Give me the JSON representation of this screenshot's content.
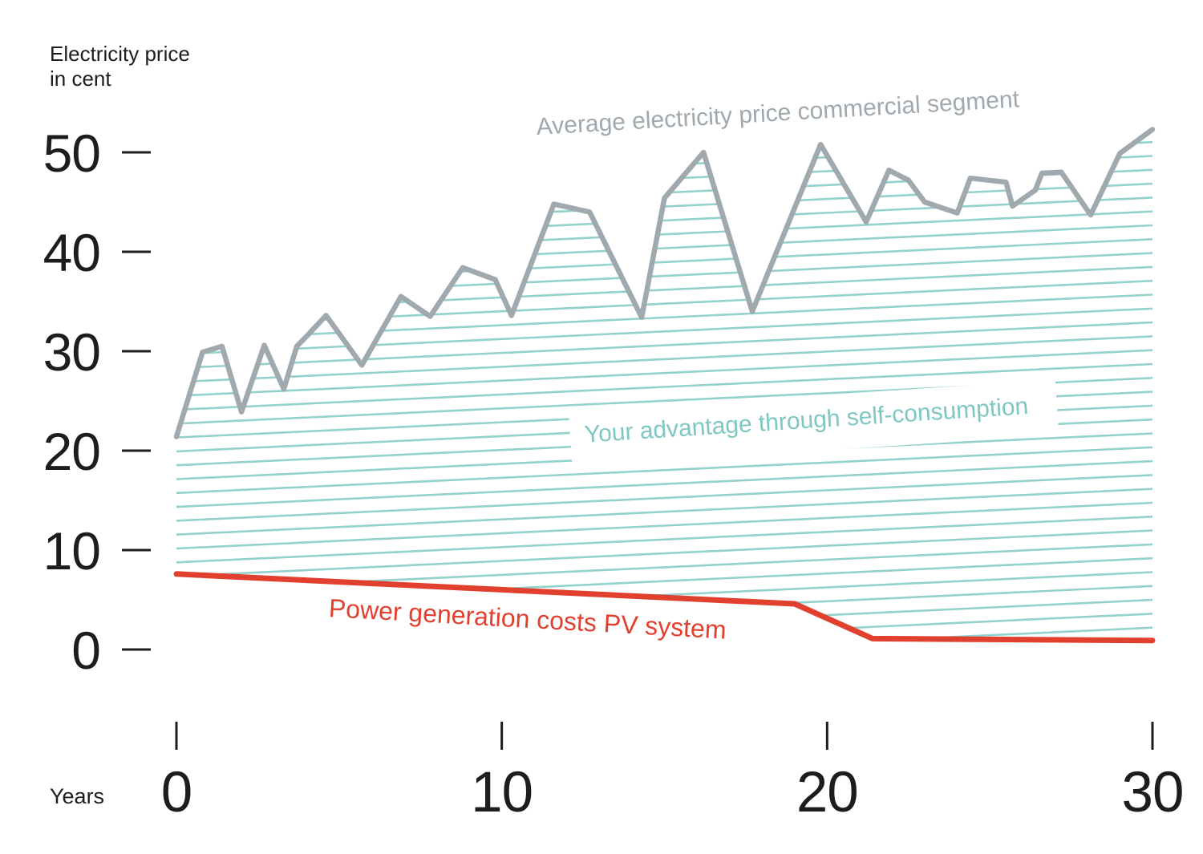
{
  "y_axis": {
    "title_line1": "Electricity price",
    "title_line2": "in cent",
    "ticks": [
      50,
      40,
      30,
      20,
      10,
      0
    ]
  },
  "x_axis": {
    "title": "Years",
    "ticks": [
      0,
      10,
      20,
      30
    ]
  },
  "colors": {
    "text": "#1d1d1b",
    "average_price_line": "#9fa9ae",
    "pv_cost_line": "#e2402e",
    "advantage_hatch": "#93d1cd",
    "advantage_label": "#7ec7c3",
    "background": "#ffffff"
  },
  "chart_data": {
    "type": "area",
    "title": "",
    "xlabel": "Years",
    "ylabel": "Electricity price in cent",
    "xlim": [
      0,
      30
    ],
    "ylim": [
      0,
      55
    ],
    "x_ticks": [
      0,
      10,
      20,
      30
    ],
    "y_ticks": [
      0,
      10,
      20,
      30,
      40,
      50
    ],
    "grid": false,
    "legend_position": "inline-annotations",
    "series": [
      {
        "name": "Average electricity price commercial segment",
        "role": "upper-bound",
        "color": "#9fa9ae",
        "points": [
          [
            0,
            21.4
          ],
          [
            0.8,
            29.9
          ],
          [
            1.4,
            30.5
          ],
          [
            2.0,
            23.9
          ],
          [
            2.7,
            30.6
          ],
          [
            3.3,
            26.2
          ],
          [
            3.7,
            30.5
          ],
          [
            4.0,
            31.5
          ],
          [
            4.6,
            33.6
          ],
          [
            5.7,
            28.6
          ],
          [
            6.9,
            35.5
          ],
          [
            7.8,
            33.5
          ],
          [
            8.8,
            38.4
          ],
          [
            9.8,
            37.2
          ],
          [
            10.3,
            33.6
          ],
          [
            11.6,
            44.8
          ],
          [
            12.7,
            44.0
          ],
          [
            14.3,
            33.4
          ],
          [
            15.0,
            45.4
          ],
          [
            16.2,
            50.0
          ],
          [
            17.7,
            34.0
          ],
          [
            19.8,
            50.8
          ],
          [
            21.2,
            43.0
          ],
          [
            21.9,
            48.2
          ],
          [
            22.5,
            47.2
          ],
          [
            23.0,
            45.0
          ],
          [
            24.0,
            43.9
          ],
          [
            24.4,
            47.4
          ],
          [
            25.5,
            47.0
          ],
          [
            25.7,
            44.6
          ],
          [
            26.4,
            46.2
          ],
          [
            26.6,
            47.9
          ],
          [
            27.2,
            48.0
          ],
          [
            28.1,
            43.7
          ],
          [
            29.0,
            49.9
          ],
          [
            30,
            52.3
          ]
        ]
      },
      {
        "name": "Power generation costs PV system",
        "role": "lower-bound",
        "color": "#e2402e",
        "points": [
          [
            0,
            7.6
          ],
          [
            19,
            4.6
          ],
          [
            21.4,
            1.1
          ],
          [
            30,
            0.9
          ]
        ]
      }
    ],
    "area": {
      "label": "Your advantage through self-consumption",
      "between": [
        "Average electricity price commercial segment",
        "Power generation costs PV system"
      ],
      "hatch_color": "#93d1cd",
      "label_color": "#7ec7c3"
    }
  }
}
